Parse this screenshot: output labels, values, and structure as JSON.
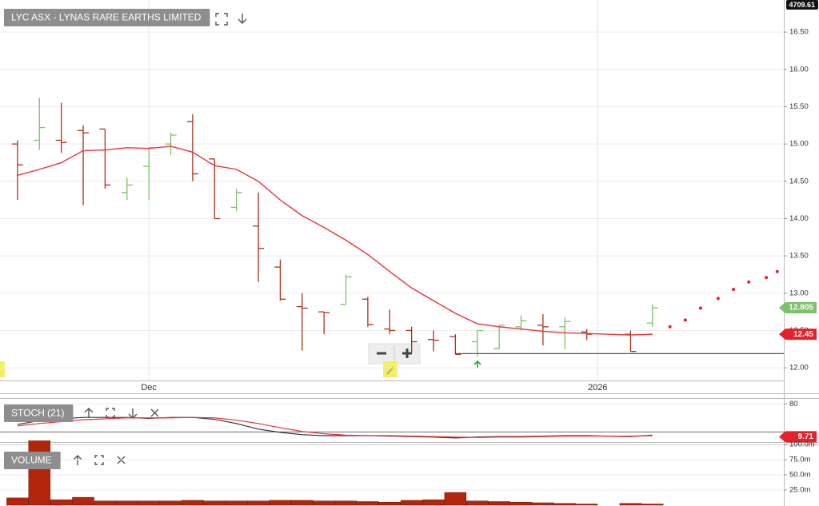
{
  "chart_data": [
    {
      "type": "ohlc",
      "title": "LYC ASX - LYNAS RARE EARTHS LIMITED",
      "top_label": "4709.61",
      "x": [
        0,
        1,
        2,
        3,
        4,
        5,
        6,
        7,
        8,
        9,
        10,
        11,
        12,
        13,
        14,
        15,
        16,
        17,
        18,
        19,
        20,
        21,
        22,
        23,
        24,
        25,
        26,
        28,
        29
      ],
      "open": [
        15.0,
        15.05,
        15.05,
        15.18,
        15.2,
        14.35,
        14.7,
        15.0,
        15.3,
        14.8,
        14.15,
        13.9,
        13.35,
        12.82,
        12.75,
        12.85,
        12.92,
        12.52,
        12.5,
        12.38,
        12.42,
        12.35,
        12.26,
        12.55,
        12.57,
        12.55,
        12.48,
        12.45,
        12.6
      ],
      "high": [
        15.05,
        15.62,
        15.55,
        15.25,
        15.2,
        14.55,
        14.95,
        15.15,
        15.4,
        14.8,
        14.4,
        14.35,
        13.45,
        13.0,
        12.75,
        13.25,
        12.95,
        12.78,
        12.55,
        12.5,
        12.45,
        12.5,
        12.57,
        12.7,
        12.72,
        12.68,
        12.52,
        12.5,
        12.85
      ],
      "low": [
        14.25,
        14.92,
        14.88,
        14.18,
        14.4,
        14.25,
        14.25,
        14.85,
        14.5,
        14.0,
        14.1,
        13.15,
        12.9,
        12.23,
        12.45,
        12.85,
        12.55,
        12.45,
        12.2,
        12.22,
        12.18,
        12.15,
        12.25,
        12.5,
        12.3,
        12.25,
        12.37,
        12.22,
        12.55
      ],
      "close": [
        14.72,
        15.22,
        15.02,
        15.15,
        14.45,
        14.45,
        14.95,
        15.12,
        14.6,
        14.0,
        14.35,
        13.6,
        12.92,
        12.8,
        12.74,
        13.22,
        12.58,
        12.5,
        12.35,
        12.37,
        12.18,
        12.5,
        12.57,
        12.63,
        12.55,
        12.62,
        12.45,
        12.22,
        12.805
      ],
      "up_color": "#7dbf6b",
      "down_color": "#a8321a",
      "ma": {
        "color": "#e8333a",
        "values": [
          14.58,
          14.66,
          14.75,
          14.91,
          14.92,
          14.95,
          14.94,
          14.97,
          14.89,
          14.71,
          14.66,
          14.5,
          14.25,
          14.04,
          13.88,
          13.71,
          13.52,
          13.29,
          13.07,
          12.9,
          12.73,
          12.59,
          12.55,
          12.52,
          12.49,
          12.47,
          12.46,
          12.44,
          12.45
        ]
      },
      "forecast": {
        "color": "#e8202a",
        "x": [
          29.8,
          30.5,
          31.2,
          32.0,
          32.7,
          33.4,
          34.2,
          34.7
        ],
        "values": [
          12.55,
          12.64,
          12.8,
          12.93,
          13.05,
          13.15,
          13.21,
          13.29
        ]
      },
      "support": {
        "value": 12.19,
        "x": 20
      },
      "price_labels": [
        {
          "value": 12.805,
          "color": "#7dbf6b"
        },
        {
          "value": 12.45,
          "color": "#e8202a"
        }
      ],
      "xlim": [
        -0.8,
        35
      ],
      "ylim": [
        11.83,
        16.93
      ],
      "xticks": [
        {
          "value": 6,
          "label": "Dec"
        },
        {
          "value": 26.5,
          "label": "2026"
        }
      ],
      "yticks": [
        {
          "value": 12,
          "label": "12.00"
        },
        {
          "value": 12.5,
          "label": "12.50"
        },
        {
          "value": 13,
          "label": "13.00"
        },
        {
          "value": 13.5,
          "label": "13.50"
        },
        {
          "value": 14,
          "label": "14.00"
        },
        {
          "value": 14.5,
          "label": "14.50"
        },
        {
          "value": 15,
          "label": "15.00"
        },
        {
          "value": 15.5,
          "label": "15.50"
        },
        {
          "value": 16,
          "label": "16.00"
        },
        {
          "value": 16.5,
          "label": "16.50"
        }
      ]
    },
    {
      "type": "line",
      "title": "STOCH (21)",
      "x": [
        0,
        1,
        2,
        3,
        4,
        5,
        6,
        7,
        8,
        9,
        10,
        11,
        12,
        13,
        14,
        15,
        16,
        17,
        18,
        19,
        20,
        21,
        22,
        23,
        24,
        25,
        26,
        28,
        29
      ],
      "series": [
        {
          "color": "#333333",
          "values": [
            36,
            44,
            48,
            51,
            51,
            51,
            49,
            51,
            51,
            47,
            38,
            26,
            19,
            14,
            12,
            12,
            12,
            11,
            10,
            9,
            7,
            9,
            10,
            10,
            11,
            12,
            12,
            10,
            13
          ]
        },
        {
          "color": "#e8333a",
          "values": [
            33,
            38,
            42,
            46,
            48,
            50,
            50,
            50,
            51,
            50,
            45,
            38,
            29,
            21,
            16,
            13,
            12,
            12,
            11,
            10,
            9,
            8,
            9,
            9,
            10,
            11,
            11,
            11,
            12
          ]
        }
      ],
      "levels": [
        20
      ],
      "price_labels": [
        {
          "value": 9.71,
          "color": "#e8202a"
        }
      ],
      "ylim": [
        0,
        89
      ],
      "yticks": [
        80
      ]
    },
    {
      "type": "bar",
      "title": "VOLUME",
      "x": [
        0,
        1,
        2,
        3,
        4,
        5,
        6,
        7,
        8,
        9,
        10,
        11,
        12,
        13,
        14,
        15,
        16,
        17,
        18,
        19,
        20,
        21,
        22,
        23,
        24,
        25,
        26,
        28,
        29
      ],
      "values": [
        12,
        106,
        9,
        13,
        7,
        7,
        7,
        7,
        8,
        7,
        7,
        7,
        8,
        8,
        7,
        7,
        6,
        5,
        8,
        9,
        21,
        7,
        6,
        5,
        4,
        3,
        2,
        3,
        2
      ],
      "color": "#b3260c",
      "ylim": [
        0,
        100
      ],
      "yticks": [
        {
          "value": 25,
          "label": "25.0m"
        },
        {
          "value": 50,
          "label": "50.0m"
        },
        {
          "value": 75,
          "label": "75.0m"
        },
        {
          "value": 100,
          "label": "100.0m"
        }
      ]
    }
  ]
}
